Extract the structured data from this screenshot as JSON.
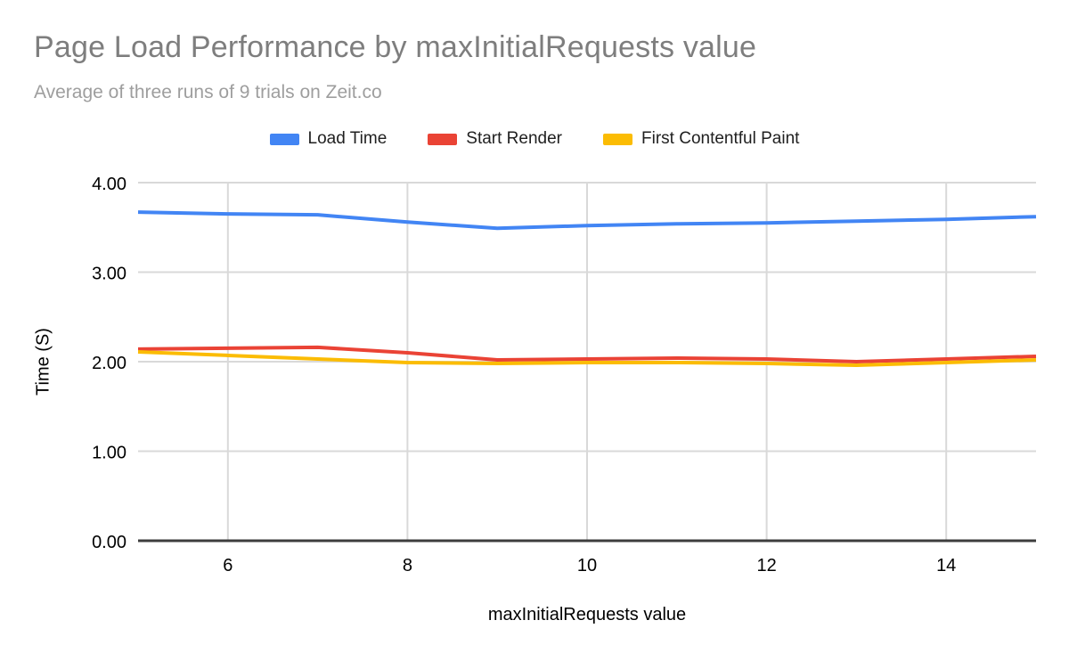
{
  "colors": {
    "background": "#ffffff",
    "title_text": "#7e7e7e",
    "subtitle_text": "#9e9e9e",
    "tick_text": "#000000",
    "gridline": "#d9d9d9",
    "axis_line": "#3d3d3d",
    "series_blue": "#4285F4",
    "series_red": "#EA4335",
    "series_yellow": "#FBBC04"
  },
  "chart_data": {
    "type": "line",
    "title": "Page Load Performance by maxInitialRequests value",
    "subtitle": "Average of three runs of 9 trials on Zeit.co",
    "xlabel": "maxInitialRequests value",
    "ylabel": "Time (S)",
    "legend_position": "top",
    "grid": true,
    "xlim": [
      5,
      15
    ],
    "ylim": [
      0,
      4
    ],
    "x": [
      5,
      6,
      7,
      8,
      9,
      10,
      11,
      12,
      13,
      14,
      15
    ],
    "xticks": [
      {
        "value": 6,
        "label": "6"
      },
      {
        "value": 8,
        "label": "8"
      },
      {
        "value": 10,
        "label": "10"
      },
      {
        "value": 12,
        "label": "12"
      },
      {
        "value": 14,
        "label": "14"
      }
    ],
    "yticks": [
      {
        "value": 0,
        "label": "0.00"
      },
      {
        "value": 1,
        "label": "1.00"
      },
      {
        "value": 2,
        "label": "2.00"
      },
      {
        "value": 3,
        "label": "3.00"
      },
      {
        "value": 4,
        "label": "4.00"
      }
    ],
    "series": [
      {
        "name": "Load Time",
        "color": "#4285F4",
        "values": [
          3.67,
          3.65,
          3.64,
          3.56,
          3.49,
          3.52,
          3.54,
          3.55,
          3.57,
          3.59,
          3.62
        ]
      },
      {
        "name": "Start Render",
        "color": "#EA4335",
        "values": [
          2.14,
          2.15,
          2.16,
          2.1,
          2.02,
          2.03,
          2.04,
          2.03,
          2.0,
          2.03,
          2.06
        ]
      },
      {
        "name": "First Contentful Paint",
        "color": "#FBBC04",
        "values": [
          2.11,
          2.07,
          2.03,
          1.99,
          1.98,
          1.99,
          1.99,
          1.98,
          1.96,
          1.99,
          2.02
        ]
      }
    ]
  }
}
